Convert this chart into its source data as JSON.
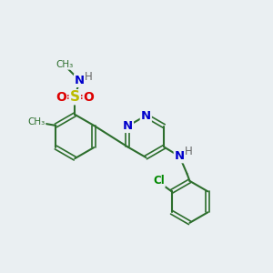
{
  "background_color": "#eaeff2",
  "bond_color": "#2d6e2d",
  "nitrogen_color": "#0000cc",
  "oxygen_color": "#dd0000",
  "sulfur_color": "#bbbb00",
  "chlorine_color": "#008800",
  "hydrogen_color": "#666666",
  "figsize": [
    3.0,
    3.0
  ],
  "dpi": 100,
  "xlim": [
    0,
    10
  ],
  "ylim": [
    0,
    10
  ]
}
